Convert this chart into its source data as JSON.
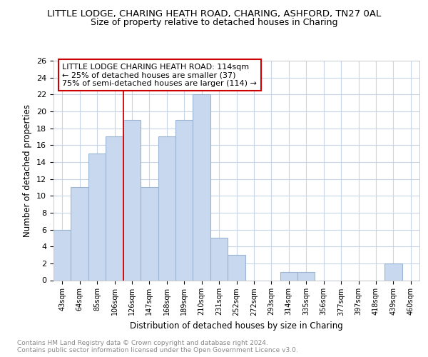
{
  "title": "LITTLE LODGE, CHARING HEATH ROAD, CHARING, ASHFORD, TN27 0AL",
  "subtitle": "Size of property relative to detached houses in Charing",
  "xlabel": "Distribution of detached houses by size in Charing",
  "ylabel": "Number of detached properties",
  "bar_color": "#c8d8ee",
  "bar_edge_color": "#9ab4d4",
  "categories": [
    "43sqm",
    "64sqm",
    "85sqm",
    "106sqm",
    "126sqm",
    "147sqm",
    "168sqm",
    "189sqm",
    "210sqm",
    "231sqm",
    "252sqm",
    "272sqm",
    "293sqm",
    "314sqm",
    "335sqm",
    "356sqm",
    "377sqm",
    "397sqm",
    "418sqm",
    "439sqm",
    "460sqm"
  ],
  "values": [
    6,
    11,
    15,
    17,
    19,
    11,
    17,
    19,
    22,
    5,
    3,
    0,
    0,
    1,
    1,
    0,
    0,
    0,
    0,
    2,
    0
  ],
  "vline_x": 3.5,
  "vline_color": "#cc0000",
  "ylim": [
    0,
    26
  ],
  "yticks": [
    0,
    2,
    4,
    6,
    8,
    10,
    12,
    14,
    16,
    18,
    20,
    22,
    24,
    26
  ],
  "annotation_box_text": "LITTLE LODGE CHARING HEATH ROAD: 114sqm\n← 25% of detached houses are smaller (37)\n75% of semi-detached houses are larger (114) →",
  "annotation_box_edge": "#cc0000",
  "footer_text": "Contains HM Land Registry data © Crown copyright and database right 2024.\nContains public sector information licensed under the Open Government Licence v3.0.",
  "background_color": "#ffffff",
  "plot_bg_color": "#ffffff",
  "grid_color": "#c8d4e8",
  "title_fontsize": 9.5,
  "subtitle_fontsize": 9
}
